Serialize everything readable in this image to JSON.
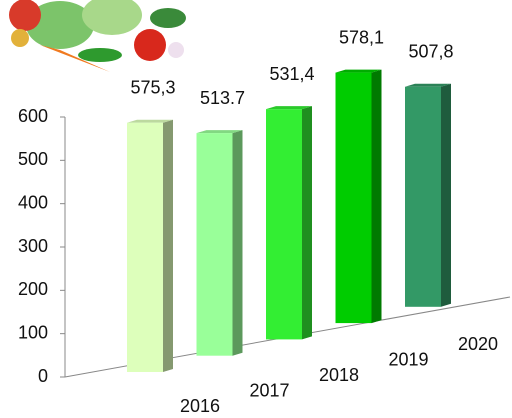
{
  "chart_data": {
    "type": "bar3d",
    "categories": [
      "2016",
      "2017",
      "2018",
      "2019",
      "2020"
    ],
    "values": [
      575.3,
      513.7,
      531.4,
      578.1,
      507.8
    ],
    "value_labels": [
      "575,3",
      "513.7",
      "531,4",
      "578,1",
      "507,8"
    ],
    "colors": [
      "#ddffbb",
      "#99ff99",
      "#33ee33",
      "#00cc00",
      "#339966"
    ],
    "ylim": [
      0,
      600
    ],
    "yticks": [
      0,
      100,
      200,
      300,
      400,
      500,
      600
    ]
  }
}
